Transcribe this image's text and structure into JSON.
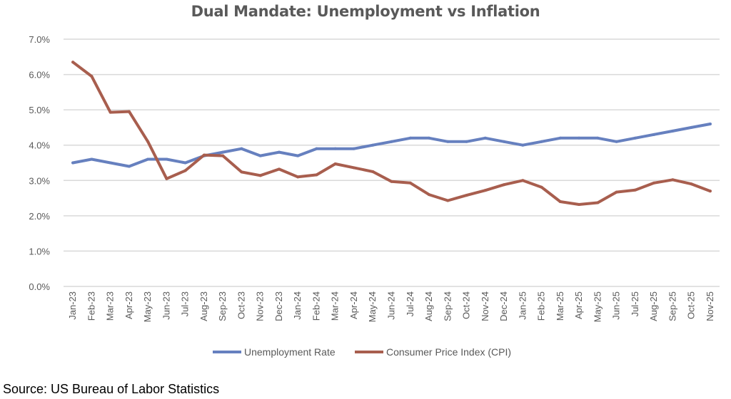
{
  "chart_data": {
    "type": "line",
    "title": "Dual Mandate: Unemployment vs Inflation",
    "source": "Source: US Bureau of Labor Statistics",
    "xlabel": "",
    "ylabel": "",
    "ylim": [
      0,
      7
    ],
    "yticks": [
      "0.0%",
      "1.0%",
      "2.0%",
      "3.0%",
      "4.0%",
      "5.0%",
      "6.0%",
      "7.0%"
    ],
    "grid": true,
    "legend": "bottom",
    "categories": [
      "Jan-23",
      "Feb-23",
      "Mar-23",
      "Apr-23",
      "May-23",
      "Jun-23",
      "Jul-23",
      "Aug-23",
      "Sep-23",
      "Oct-23",
      "Nov-23",
      "Dec-23",
      "Jan-24",
      "Feb-24",
      "Mar-24",
      "Apr-24",
      "May-24",
      "Jun-24",
      "Jul-24",
      "Aug-24",
      "Sep-24",
      "Oct-24",
      "Nov-24",
      "Dec-24",
      "Jan-25",
      "Feb-25",
      "Mar-25",
      "Apr-25",
      "May-25",
      "Jun-25",
      "Jul-25",
      "Aug-25",
      "Sep-25",
      "Oct-25",
      "Nov-25"
    ],
    "series": [
      {
        "name": "Unemployment Rate",
        "color": "#6680bf",
        "values": [
          3.5,
          3.6,
          3.5,
          3.4,
          3.6,
          3.6,
          3.5,
          3.7,
          3.8,
          3.9,
          3.7,
          3.8,
          3.7,
          3.9,
          3.9,
          3.9,
          4.0,
          4.1,
          4.2,
          4.2,
          4.1,
          4.1,
          4.2,
          4.1,
          4.0,
          4.1,
          4.2,
          4.2,
          4.2,
          4.1,
          4.2,
          4.3,
          4.4,
          4.5,
          4.6
        ]
      },
      {
        "name": "Consumer Price Index (CPI)",
        "color": "#a85e4e",
        "values": [
          6.35,
          5.95,
          4.93,
          4.95,
          4.1,
          3.05,
          3.28,
          3.72,
          3.7,
          3.24,
          3.14,
          3.32,
          3.1,
          3.16,
          3.47,
          3.36,
          3.25,
          2.97,
          2.93,
          2.6,
          2.43,
          2.58,
          2.72,
          2.88,
          3.0,
          2.81,
          2.4,
          2.32,
          2.37,
          2.67,
          2.73,
          2.93,
          3.02,
          2.9,
          2.7
        ]
      }
    ]
  }
}
